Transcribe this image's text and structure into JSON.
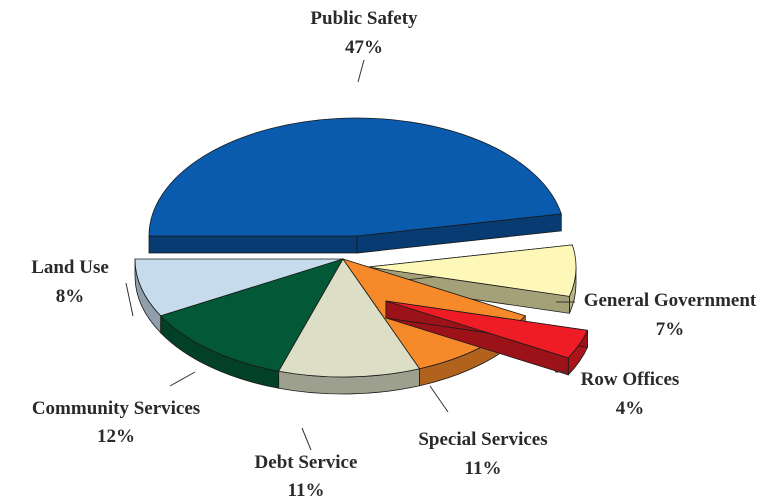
{
  "chart_data": {
    "type": "pie",
    "title": "",
    "unit": "%",
    "slices": [
      {
        "label": "Public Safety",
        "value": 47,
        "value_label": "47%",
        "color": "#0a5bae",
        "exploded": true
      },
      {
        "label": "General Government",
        "value": 7,
        "value_label": "7%",
        "color": "#fdf8b8",
        "exploded": true
      },
      {
        "label": "Row Offices",
        "value": 4,
        "value_label": "4%",
        "color": "#ee1c25",
        "exploded": true
      },
      {
        "label": "Special Services",
        "value": 11,
        "value_label": "11%",
        "color": "#f6892a",
        "exploded": false
      },
      {
        "label": "Debt Service",
        "value": 11,
        "value_label": "11%",
        "color": "#dcdec6",
        "exploded": false
      },
      {
        "label": "Community Services",
        "value": 12,
        "value_label": "12%",
        "color": "#035937",
        "exploded": false
      },
      {
        "label": "Land Use",
        "value": 8,
        "value_label": "8%",
        "color": "#c6dcec",
        "exploded": false
      }
    ]
  }
}
